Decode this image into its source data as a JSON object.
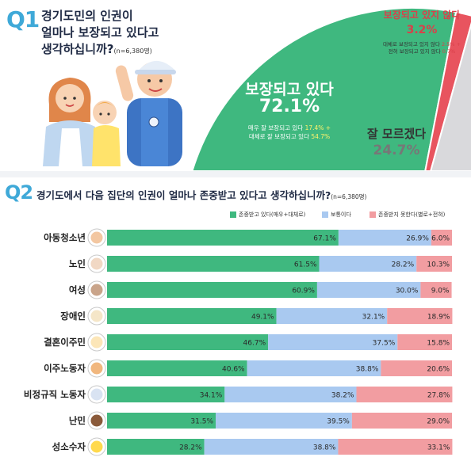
{
  "q1": {
    "number": "Q1",
    "question_lines": [
      "경기도민의 인권이",
      "얼마나 보장되고 있다고",
      "생각하십니까?"
    ],
    "n_note": "(n=6,380명)",
    "illustration": "family-with-worker-illustration",
    "slices": [
      {
        "name": "보장되고 있다",
        "value": 72.1,
        "value_text": "72.1%",
        "color": "#3fb87f",
        "detail_1_prefix": "매우 잘 보장되고 있다 ",
        "detail_1_value": "17.4% +",
        "detail_2_prefix": "대체로 잘 보장되고 있다 ",
        "detail_2_value": "54.7%"
      },
      {
        "name": "잘 모르겠다",
        "value": 24.7,
        "value_text": "24.7%",
        "color": "#d9d9dc"
      },
      {
        "name": "보장되고 있지 않다",
        "value": 3.2,
        "value_text": "3.2%",
        "color": "#e8545f",
        "detail_1_prefix": "대체로 보장되고 있지 않다 ",
        "detail_1_value": "2.5% +",
        "detail_2_prefix": "전혀 보장되고 있지 않다 ",
        "detail_2_value": "0.7%"
      }
    ]
  },
  "q2": {
    "number": "Q2",
    "question": "경기도에서 다음 집단의 인권이 얼마나 존중받고 있다고 생각하십니까?",
    "n_note": "(n=6,380명)"
  },
  "chart_data": {
    "type": "bar",
    "orientation": "horizontal",
    "stacked": true,
    "percent_stacked": true,
    "categories": [
      "아동청소년",
      "노인",
      "여성",
      "장애인",
      "결혼이주민",
      "이주노동자",
      "비정규직 노동자",
      "난민",
      "성소수자"
    ],
    "series": [
      {
        "name": "존중받고 있다(매우+대체로)",
        "color": "#3fb87f",
        "values": [
          67.1,
          61.5,
          60.9,
          49.1,
          46.7,
          40.6,
          34.1,
          31.5,
          28.2
        ]
      },
      {
        "name": "보통이다",
        "color": "#a9c9f0",
        "values": [
          26.9,
          28.2,
          30.0,
          32.1,
          37.5,
          38.8,
          38.2,
          39.5,
          38.8
        ]
      },
      {
        "name": "존중받지 못한다(별로+전혀)",
        "color": "#f29da1",
        "values": [
          6.0,
          10.3,
          9.0,
          18.9,
          15.8,
          20.6,
          27.8,
          29.0,
          33.1
        ]
      }
    ],
    "labels": [
      [
        "67.1%",
        "26.9%",
        "6.0%"
      ],
      [
        "61.5%",
        "28.2%",
        "10.3%"
      ],
      [
        "60.9%",
        "30.0%",
        "9.0%"
      ],
      [
        "49.1%",
        "32.1%",
        "18.9%"
      ],
      [
        "46.7%",
        "37.5%",
        "15.8%"
      ],
      [
        "40.6%",
        "38.8%",
        "20.6%"
      ],
      [
        "34.1%",
        "38.2%",
        "27.8%"
      ],
      [
        "31.5%",
        "39.5%",
        "29.0%"
      ],
      [
        "28.2%",
        "38.8%",
        "33.1%"
      ]
    ],
    "category_icons": [
      "child-face-icon",
      "elderly-face-icon",
      "woman-face-icon",
      "wheelchair-icon",
      "wedding-rings-icon",
      "worker-face-icon",
      "cap-worker-face-icon",
      "refugee-face-icon",
      "smiley-face-icon"
    ],
    "legend_position": "top-right",
    "xlim": [
      0,
      100
    ],
    "grid": false
  }
}
